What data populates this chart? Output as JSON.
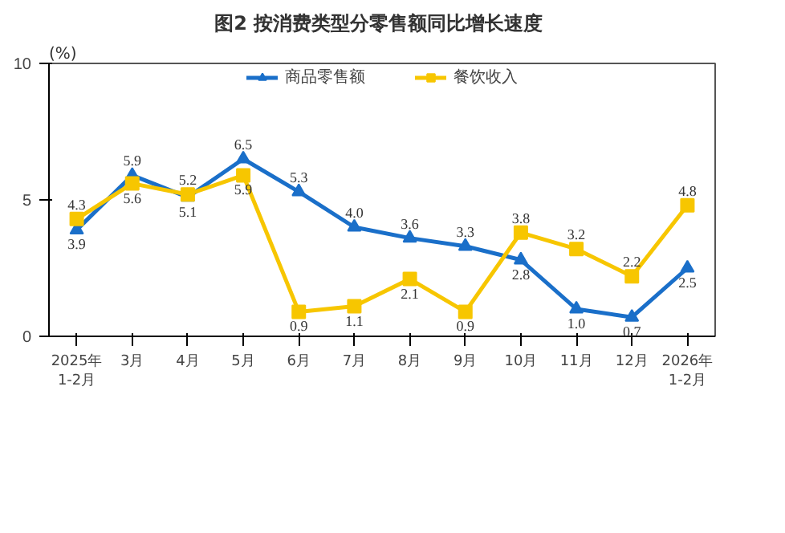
{
  "chart_data": {
    "type": "line",
    "title": "图2  按消费类型分零售额同比增长速度",
    "ylabel": "(%)",
    "categories": [
      "2025年\n1-2月",
      "3月",
      "4月",
      "5月",
      "6月",
      "7月",
      "8月",
      "9月",
      "10月",
      "11月",
      "12月",
      "2026年\n1-2月"
    ],
    "series": [
      {
        "name": "商品零售额",
        "color": "#1a6fc9",
        "marker": "triangle",
        "values": [
          3.9,
          5.9,
          5.1,
          6.5,
          5.3,
          4.0,
          3.6,
          3.3,
          2.8,
          1.0,
          0.7,
          2.5
        ],
        "value_labels": [
          "3.9",
          "5.9",
          "5.1",
          "6.5",
          "5.3",
          "4.0",
          "3.6",
          "3.3",
          "2.8",
          "1.0",
          "0.7",
          "2.5"
        ]
      },
      {
        "name": "餐饮收入",
        "color": "#f7c600",
        "marker": "square",
        "values": [
          4.3,
          5.6,
          5.2,
          5.9,
          0.9,
          1.1,
          2.1,
          0.9,
          3.8,
          3.2,
          2.2,
          4.8
        ],
        "value_labels": [
          "4.3",
          "5.6",
          "5.2",
          "5.9",
          "0.9",
          "1.1",
          "2.1",
          "0.9",
          "3.8",
          "3.2",
          "2.2",
          "4.8"
        ]
      }
    ],
    "ylim": [
      0,
      10
    ],
    "yticks": [
      0,
      5,
      10
    ],
    "grid": false,
    "legend": "top",
    "line_style": "solid",
    "data_labels": true
  }
}
